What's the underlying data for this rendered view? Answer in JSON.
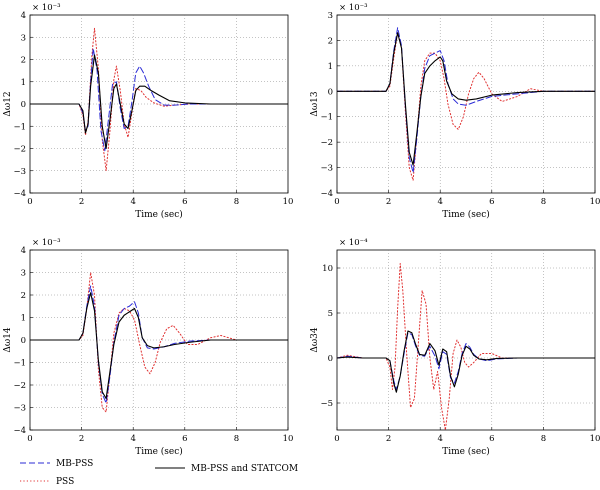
{
  "chart_data": [
    {
      "type": "line",
      "ylabel": "Δω12",
      "xlabel": "Time (sec)",
      "scale_label": "× 10⁻³",
      "xlim": [
        0,
        10
      ],
      "ylim": [
        -4,
        4
      ],
      "xticks": [
        "0",
        "2",
        "4",
        "6",
        "8",
        "10"
      ],
      "yticks": [
        "4",
        "3",
        "2",
        "1",
        "0",
        "−1",
        "−2",
        "−3",
        "−4"
      ],
      "grid": true,
      "series": [
        {
          "name": "MB-PSS",
          "color": "#2b2bd6",
          "style": "dashed",
          "x": [
            0,
            1.9,
            2.05,
            2.15,
            2.25,
            2.35,
            2.45,
            2.6,
            2.75,
            2.9,
            3.05,
            3.2,
            3.35,
            3.5,
            3.65,
            3.8,
            3.95,
            4.1,
            4.25,
            4.4,
            4.6,
            4.85,
            5.2,
            5.6,
            6.2,
            7,
            8,
            10
          ],
          "y": [
            0,
            0,
            -0.4,
            -1.2,
            -1.0,
            1.0,
            2.5,
            1.5,
            -1.2,
            -2.1,
            -0.6,
            0.9,
            1.0,
            -0.2,
            -1.1,
            -1.0,
            0.1,
            1.4,
            1.7,
            1.4,
            0.8,
            0.2,
            -0.05,
            -0.05,
            0,
            0,
            0,
            0
          ]
        },
        {
          "name": "PSS",
          "color": "#e03030",
          "style": "dotted",
          "x": [
            0,
            1.9,
            2.05,
            2.15,
            2.25,
            2.4,
            2.5,
            2.65,
            2.8,
            2.95,
            3.1,
            3.25,
            3.35,
            3.5,
            3.65,
            3.8,
            3.95,
            4.1,
            4.3,
            4.5,
            4.8,
            5.2,
            5.6,
            6.2,
            7,
            8,
            10
          ],
          "y": [
            0,
            0,
            -0.5,
            -1.4,
            -0.8,
            2.2,
            3.4,
            1.6,
            -1.6,
            -3.0,
            -1.2,
            1.1,
            1.7,
            0.6,
            -0.9,
            -1.5,
            -0.4,
            0.7,
            0.6,
            0.3,
            0.05,
            -0.1,
            -0.05,
            0,
            0,
            0,
            0
          ]
        },
        {
          "name": "MB-PSS and STATCOM",
          "color": "#000000",
          "style": "solid",
          "x": [
            0,
            1.9,
            2.05,
            2.15,
            2.25,
            2.35,
            2.5,
            2.65,
            2.8,
            2.95,
            3.1,
            3.25,
            3.35,
            3.5,
            3.65,
            3.8,
            3.95,
            4.1,
            4.25,
            4.45,
            4.7,
            5.0,
            5.4,
            6,
            7,
            8,
            10
          ],
          "y": [
            0,
            0,
            -0.3,
            -1.3,
            -0.9,
            0.8,
            2.2,
            1.4,
            -1.0,
            -2.0,
            -0.7,
            0.7,
            0.9,
            0,
            -0.9,
            -1.1,
            -0.3,
            0.6,
            0.8,
            0.8,
            0.6,
            0.4,
            0.15,
            0.05,
            0,
            0,
            0
          ]
        }
      ]
    },
    {
      "type": "line",
      "ylabel": "Δω13",
      "xlabel": "Time (sec)",
      "scale_label": "× 10⁻³",
      "xlim": [
        0,
        10
      ],
      "ylim": [
        -4,
        3
      ],
      "xticks": [
        "0",
        "2",
        "4",
        "6",
        "8",
        "10"
      ],
      "yticks": [
        "3",
        "2",
        "1",
        "0",
        "−1",
        "−2",
        "−3",
        "−4"
      ],
      "grid": true,
      "series": [
        {
          "name": "MB-PSS",
          "color": "#2b2bd6",
          "style": "dashed",
          "x": [
            0,
            1.9,
            2.05,
            2.2,
            2.35,
            2.5,
            2.65,
            2.8,
            2.95,
            3.1,
            3.25,
            3.4,
            3.6,
            3.8,
            4.0,
            4.15,
            4.3,
            4.5,
            4.7,
            5.0,
            5.4,
            6,
            7,
            8,
            10
          ],
          "y": [
            0,
            0,
            0.3,
            1.6,
            2.5,
            1.8,
            -0.6,
            -2.6,
            -3.2,
            -1.8,
            -0.2,
            0.9,
            1.4,
            1.5,
            1.6,
            1.2,
            0.3,
            -0.3,
            -0.5,
            -0.55,
            -0.4,
            -0.2,
            -0.1,
            0,
            0
          ]
        },
        {
          "name": "PSS",
          "color": "#e03030",
          "style": "dotted",
          "x": [
            0,
            1.9,
            2.05,
            2.2,
            2.35,
            2.5,
            2.65,
            2.8,
            2.95,
            3.1,
            3.25,
            3.4,
            3.6,
            3.8,
            4.0,
            4.15,
            4.3,
            4.5,
            4.7,
            4.9,
            5.1,
            5.3,
            5.5,
            5.7,
            6.0,
            6.4,
            7.0,
            7.5,
            8,
            10
          ],
          "y": [
            0,
            0,
            0.2,
            1.3,
            2.3,
            1.7,
            -0.8,
            -3.0,
            -3.5,
            -1.7,
            0.2,
            1.2,
            1.5,
            1.5,
            1.2,
            0.5,
            -0.5,
            -1.3,
            -1.5,
            -1.0,
            -0.1,
            0.5,
            0.75,
            0.5,
            -0.1,
            -0.4,
            -0.2,
            0.1,
            0,
            0
          ]
        },
        {
          "name": "MB-PSS and STATCOM",
          "color": "#000000",
          "style": "solid",
          "x": [
            0,
            1.9,
            2.05,
            2.2,
            2.35,
            2.5,
            2.65,
            2.8,
            2.95,
            3.1,
            3.25,
            3.4,
            3.6,
            3.8,
            4.0,
            4.1,
            4.25,
            4.45,
            4.7,
            5.0,
            5.4,
            6,
            7,
            8,
            10
          ],
          "y": [
            0,
            0,
            0.3,
            1.5,
            2.3,
            1.7,
            -0.5,
            -2.4,
            -2.9,
            -1.6,
            -0.2,
            0.7,
            1.0,
            1.2,
            1.35,
            1.2,
            0.4,
            -0.1,
            -0.3,
            -0.35,
            -0.3,
            -0.15,
            -0.05,
            0,
            0
          ]
        }
      ]
    },
    {
      "type": "line",
      "ylabel": "Δω14",
      "xlabel": "Time (sec)",
      "scale_label": "× 10⁻³",
      "xlim": [
        0,
        10
      ],
      "ylim": [
        -4,
        4
      ],
      "xticks": [
        "0",
        "2",
        "4",
        "6",
        "8",
        "10"
      ],
      "yticks": [
        "4",
        "3",
        "2",
        "1",
        "0",
        "−1",
        "−2",
        "−3",
        "−4"
      ],
      "grid": true,
      "series": [
        {
          "name": "MB-PSS",
          "color": "#2b2bd6",
          "style": "dashed",
          "x": [
            0,
            1.9,
            2.05,
            2.2,
            2.35,
            2.5,
            2.65,
            2.8,
            2.95,
            3.1,
            3.25,
            3.45,
            3.65,
            3.85,
            4.05,
            4.2,
            4.35,
            4.55,
            4.8,
            5.2,
            5.6,
            6.2,
            7,
            8,
            10
          ],
          "y": [
            0,
            0,
            0.3,
            1.5,
            2.4,
            1.5,
            -1.0,
            -2.4,
            -2.8,
            -1.6,
            -0.1,
            1.1,
            1.4,
            1.5,
            1.7,
            1.2,
            0.1,
            -0.35,
            -0.4,
            -0.3,
            -0.15,
            -0.05,
            0,
            0,
            0
          ]
        },
        {
          "name": "PSS",
          "color": "#e03030",
          "style": "dotted",
          "x": [
            0,
            1.9,
            2.05,
            2.2,
            2.35,
            2.5,
            2.65,
            2.8,
            2.95,
            3.1,
            3.25,
            3.45,
            3.65,
            3.85,
            4.05,
            4.25,
            4.45,
            4.65,
            4.85,
            5.05,
            5.3,
            5.55,
            5.8,
            6.1,
            6.5,
            7.0,
            7.4,
            8,
            10
          ],
          "y": [
            0,
            0,
            0.2,
            1.4,
            3.0,
            2.0,
            -1.3,
            -3.0,
            -3.2,
            -1.5,
            0.3,
            1.2,
            1.4,
            1.3,
            0.9,
            -0.2,
            -1.2,
            -1.5,
            -1.0,
            -0.1,
            0.5,
            0.65,
            0.3,
            -0.2,
            -0.2,
            0.1,
            0.2,
            0,
            0
          ]
        },
        {
          "name": "MB-PSS and STATCOM",
          "color": "#000000",
          "style": "solid",
          "x": [
            0,
            1.9,
            2.05,
            2.2,
            2.35,
            2.5,
            2.65,
            2.8,
            2.95,
            3.1,
            3.25,
            3.45,
            3.65,
            3.85,
            4.05,
            4.2,
            4.35,
            4.55,
            4.8,
            5.2,
            5.6,
            6.2,
            7,
            8,
            10
          ],
          "y": [
            0,
            0,
            0.3,
            1.4,
            2.1,
            1.3,
            -0.9,
            -2.3,
            -2.6,
            -1.4,
            -0.2,
            0.8,
            1.1,
            1.25,
            1.4,
            1.0,
            0.1,
            -0.25,
            -0.35,
            -0.3,
            -0.2,
            -0.1,
            0,
            0,
            0
          ]
        }
      ]
    },
    {
      "type": "line",
      "ylabel": "Δω34",
      "xlabel": "Time (sec)",
      "scale_label": "× 10⁻⁴",
      "xlim": [
        0,
        10
      ],
      "ylim": [
        -8,
        12
      ],
      "xticks": [
        "0",
        "2",
        "4",
        "6",
        "8",
        "10"
      ],
      "yticks": [
        "10",
        "5",
        "0",
        "−5"
      ],
      "ytick_values": [
        10,
        5,
        0,
        -5
      ],
      "grid": true,
      "series": [
        {
          "name": "MB-PSS",
          "color": "#2b2bd6",
          "style": "dashed",
          "x": [
            0,
            0.4,
            1.0,
            1.9,
            2.05,
            2.2,
            2.3,
            2.45,
            2.6,
            2.75,
            2.9,
            3.05,
            3.2,
            3.4,
            3.6,
            3.8,
            3.95,
            4.1,
            4.25,
            4.4,
            4.55,
            4.7,
            4.85,
            5.0,
            5.15,
            5.3,
            5.5,
            5.8,
            6.2,
            7,
            8,
            10
          ],
          "y": [
            0,
            0.2,
            0,
            0,
            -0.3,
            -2.5,
            -3.5,
            -2.0,
            0.5,
            2.8,
            2.6,
            1.3,
            0.3,
            0.2,
            1.3,
            0.2,
            -1.2,
            0.7,
            0.4,
            -2.2,
            -2.8,
            -1.5,
            0.5,
            1.6,
            1.2,
            0.4,
            -0.1,
            -0.3,
            -0.1,
            0,
            0,
            0
          ]
        },
        {
          "name": "PSS",
          "color": "#e03030",
          "style": "dotted",
          "x": [
            0,
            0.4,
            1.0,
            1.9,
            2.05,
            2.15,
            2.25,
            2.35,
            2.45,
            2.55,
            2.7,
            2.85,
            3.0,
            3.15,
            3.3,
            3.45,
            3.6,
            3.75,
            3.9,
            4.05,
            4.2,
            4.35,
            4.5,
            4.65,
            4.8,
            4.95,
            5.1,
            5.3,
            5.6,
            6.0,
            6.4,
            7,
            8,
            10
          ],
          "y": [
            0,
            0.3,
            0,
            0,
            -1.0,
            -3.5,
            -1.0,
            5.5,
            10.5,
            7.5,
            0.5,
            -5.5,
            -4.5,
            1.5,
            7.5,
            6.0,
            0.0,
            -3.5,
            -1.5,
            -5.5,
            -8.0,
            -4.5,
            0.5,
            2.0,
            1.2,
            -0.5,
            -1.0,
            -0.5,
            0.5,
            0.5,
            0,
            0,
            0,
            0
          ]
        },
        {
          "name": "MB-PSS and STATCOM",
          "color": "#000000",
          "style": "solid",
          "x": [
            0,
            0.4,
            1.0,
            1.9,
            2.05,
            2.2,
            2.3,
            2.45,
            2.6,
            2.75,
            2.9,
            3.05,
            3.2,
            3.4,
            3.6,
            3.8,
            3.95,
            4.1,
            4.25,
            4.4,
            4.55,
            4.7,
            4.85,
            5.0,
            5.15,
            5.3,
            5.5,
            5.8,
            6.2,
            7,
            8,
            10
          ],
          "y": [
            0,
            0.1,
            0,
            0,
            -0.3,
            -2.8,
            -3.8,
            -2.0,
            0.8,
            3.0,
            2.8,
            1.5,
            0.4,
            0.3,
            1.6,
            0.8,
            -0.8,
            1.0,
            0.7,
            -2.0,
            -3.2,
            -1.8,
            0.3,
            1.3,
            1.0,
            0.3,
            -0.1,
            -0.2,
            -0.05,
            0,
            0,
            0
          ]
        }
      ]
    }
  ],
  "legend": [
    {
      "name": "MB-PSS",
      "color": "#2b2bd6",
      "style": "dashed"
    },
    {
      "name": "PSS",
      "color": "#e03030",
      "style": "dotted"
    },
    {
      "name": "MB-PSS and STATCOM",
      "color": "#000000",
      "style": "solid"
    }
  ]
}
